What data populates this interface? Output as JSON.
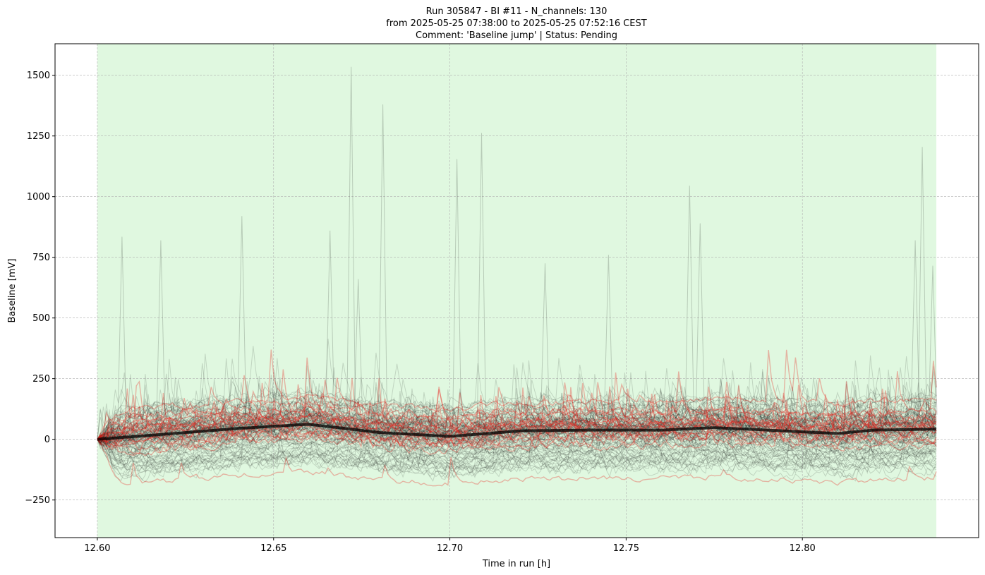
{
  "chart_data": {
    "type": "line",
    "title_lines": [
      "Run 305847  -  BI #11  -  N_channels: 130",
      "from  2025-05-25 07:38:00  to  2025-05-25 07:52:16 CEST",
      "Comment: 'Baseline jump' | Status: Pending"
    ],
    "xlabel": "Time in run [h]",
    "ylabel": "Baseline [mV]",
    "xlim": [
      12.588,
      12.85
    ],
    "ylim": [
      -405,
      1630
    ],
    "x_ticks": [
      12.6,
      12.65,
      12.7,
      12.75,
      12.8
    ],
    "x_tick_labels": [
      "12.60",
      "12.65",
      "12.70",
      "12.75",
      "12.80"
    ],
    "y_ticks": [
      -250,
      0,
      250,
      500,
      750,
      1000,
      1250,
      1500
    ],
    "y_tick_labels": [
      "−250",
      "0",
      "250",
      "500",
      "750",
      "1000",
      "1250",
      "1500"
    ],
    "grid": true,
    "shaded_region": {
      "x_start": 12.6,
      "x_end": 12.838,
      "color": "#e0f8e0"
    },
    "n_channels": 130,
    "n_highlighted_channels": 20,
    "series_colors": {
      "normal": "#000000",
      "highlighted": "#e8231c",
      "median": "#000000"
    },
    "x_start": 12.6,
    "x_end": 12.838,
    "median": {
      "x": [
        12.6,
        12.62,
        12.64,
        12.655,
        12.66,
        12.68,
        12.7,
        12.72,
        12.74,
        12.76,
        12.775,
        12.79,
        12.81,
        12.82,
        12.838
      ],
      "y": [
        0,
        22,
        45,
        58,
        62,
        28,
        12,
        35,
        38,
        38,
        48,
        38,
        24,
        38,
        42
      ]
    },
    "spikes": [
      {
        "x": 12.672,
        "y": 1535
      },
      {
        "x": 12.681,
        "y": 1380
      },
      {
        "x": 12.709,
        "y": 1262
      },
      {
        "x": 12.702,
        "y": 1155
      },
      {
        "x": 12.834,
        "y": 1205
      },
      {
        "x": 12.768,
        "y": 1045
      },
      {
        "x": 12.641,
        "y": 920
      },
      {
        "x": 12.607,
        "y": 835
      },
      {
        "x": 12.618,
        "y": 820
      },
      {
        "x": 12.771,
        "y": 890
      },
      {
        "x": 12.832,
        "y": 820
      },
      {
        "x": 12.666,
        "y": 860
      },
      {
        "x": 12.745,
        "y": 760
      },
      {
        "x": 12.727,
        "y": 725
      },
      {
        "x": 12.837,
        "y": 715
      },
      {
        "x": 12.674,
        "y": 660
      }
    ]
  }
}
